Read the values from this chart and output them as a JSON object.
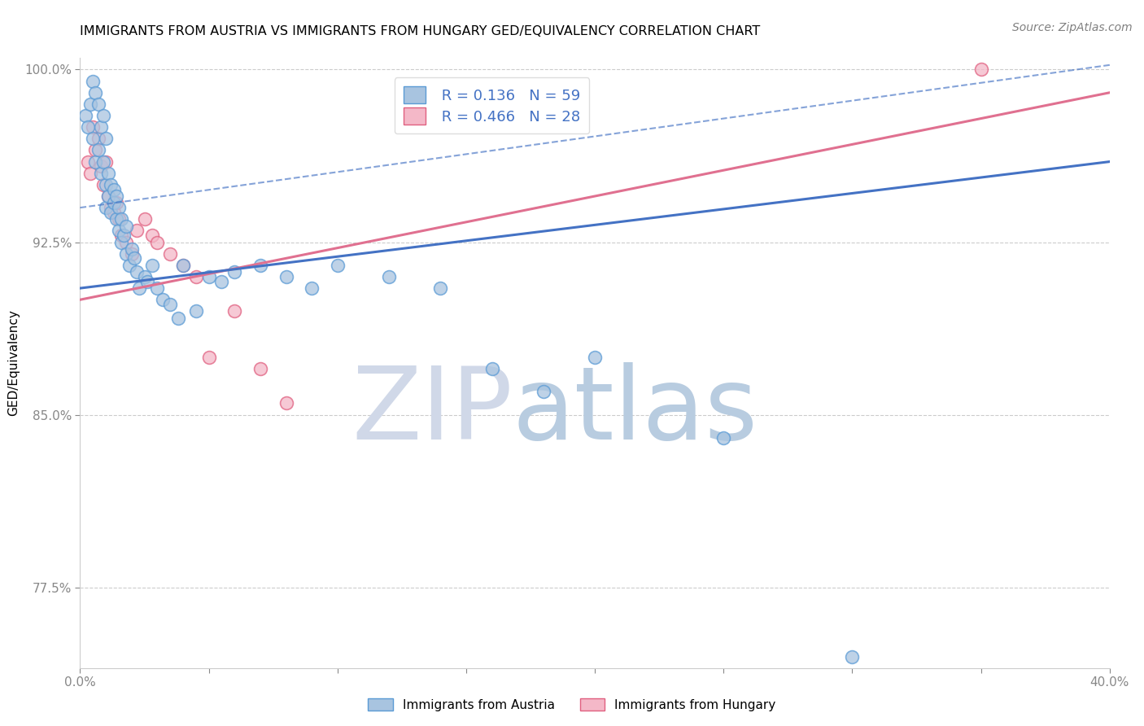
{
  "title": "IMMIGRANTS FROM AUSTRIA VS IMMIGRANTS FROM HUNGARY GED/EQUIVALENCY CORRELATION CHART",
  "source": "Source: ZipAtlas.com",
  "ylabel": "GED/Equivalency",
  "xlim": [
    0.0,
    0.4
  ],
  "ylim": [
    0.74,
    1.005
  ],
  "xticks": [
    0.0,
    0.05,
    0.1,
    0.15,
    0.2,
    0.25,
    0.3,
    0.35,
    0.4
  ],
  "xticklabels": [
    "0.0%",
    "",
    "",
    "",
    "",
    "",
    "",
    "",
    "40.0%"
  ],
  "yticks": [
    0.775,
    0.85,
    0.925,
    1.0
  ],
  "yticklabels": [
    "77.5%",
    "85.0%",
    "92.5%",
    "100.0%"
  ],
  "austria_color": "#a8c4e0",
  "austria_edge": "#5b9bd5",
  "hungary_color": "#f4b8c8",
  "hungary_edge": "#e06080",
  "austria_R": 0.136,
  "austria_N": 59,
  "hungary_R": 0.466,
  "hungary_N": 28,
  "legend_austria_label": "Immigrants from Austria",
  "legend_hungary_label": "Immigrants from Hungary",
  "watermark_zip": "ZIP",
  "watermark_atlas": "atlas",
  "watermark_zip_color": "#d0d8e8",
  "watermark_atlas_color": "#b8cce0",
  "grid_color": "#cccccc",
  "austria_line_color": "#4472c4",
  "hungary_line_color": "#e07090",
  "austria_scatter_x": [
    0.002,
    0.003,
    0.004,
    0.005,
    0.005,
    0.006,
    0.006,
    0.007,
    0.007,
    0.008,
    0.008,
    0.009,
    0.009,
    0.01,
    0.01,
    0.01,
    0.011,
    0.011,
    0.012,
    0.012,
    0.013,
    0.013,
    0.014,
    0.014,
    0.015,
    0.015,
    0.016,
    0.016,
    0.017,
    0.018,
    0.018,
    0.019,
    0.02,
    0.021,
    0.022,
    0.023,
    0.025,
    0.026,
    0.028,
    0.03,
    0.032,
    0.035,
    0.038,
    0.04,
    0.045,
    0.05,
    0.055,
    0.06,
    0.07,
    0.08,
    0.09,
    0.1,
    0.12,
    0.14,
    0.16,
    0.18,
    0.2,
    0.25,
    0.3
  ],
  "austria_scatter_y": [
    0.98,
    0.975,
    0.985,
    0.97,
    0.995,
    0.96,
    0.99,
    0.965,
    0.985,
    0.955,
    0.975,
    0.96,
    0.98,
    0.95,
    0.97,
    0.94,
    0.955,
    0.945,
    0.938,
    0.95,
    0.942,
    0.948,
    0.935,
    0.945,
    0.93,
    0.94,
    0.925,
    0.935,
    0.928,
    0.92,
    0.932,
    0.915,
    0.922,
    0.918,
    0.912,
    0.905,
    0.91,
    0.908,
    0.915,
    0.905,
    0.9,
    0.898,
    0.892,
    0.915,
    0.895,
    0.91,
    0.908,
    0.912,
    0.915,
    0.91,
    0.905,
    0.915,
    0.91,
    0.905,
    0.87,
    0.86,
    0.875,
    0.84,
    0.745
  ],
  "hungary_scatter_x": [
    0.003,
    0.004,
    0.005,
    0.006,
    0.007,
    0.008,
    0.009,
    0.01,
    0.011,
    0.012,
    0.013,
    0.014,
    0.015,
    0.016,
    0.018,
    0.02,
    0.022,
    0.025,
    0.028,
    0.03,
    0.035,
    0.04,
    0.045,
    0.05,
    0.06,
    0.07,
    0.08,
    0.35
  ],
  "hungary_scatter_y": [
    0.96,
    0.955,
    0.975,
    0.965,
    0.97,
    0.958,
    0.95,
    0.96,
    0.945,
    0.94,
    0.938,
    0.942,
    0.935,
    0.928,
    0.925,
    0.92,
    0.93,
    0.935,
    0.928,
    0.925,
    0.92,
    0.915,
    0.91,
    0.875,
    0.895,
    0.87,
    0.855,
    1.0
  ],
  "austria_line_x0": 0.0,
  "austria_line_y0": 0.905,
  "austria_line_x1": 0.4,
  "austria_line_y1": 0.96,
  "hungary_line_x0": 0.0,
  "hungary_line_y0": 0.9,
  "hungary_line_x1": 0.4,
  "hungary_line_y1": 0.99,
  "dashed_line_x0": 0.0,
  "dashed_line_y0": 0.94,
  "dashed_line_x1": 0.4,
  "dashed_line_y1": 1.002
}
